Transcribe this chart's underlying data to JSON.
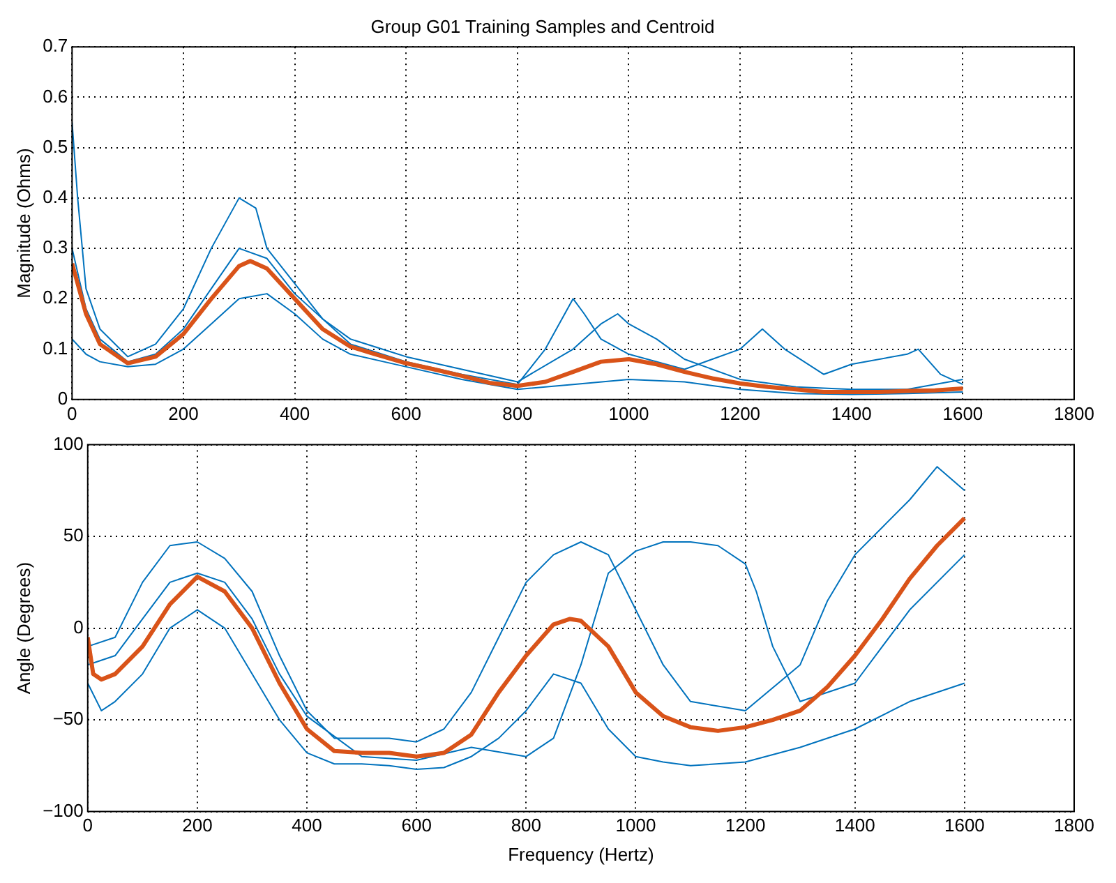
{
  "chart_data": [
    {
      "type": "line",
      "title": "Group G01 Training Samples and Centroid",
      "ylabel": "Magnitude (Ohms)",
      "xlim": [
        0,
        1800
      ],
      "xticks": [
        0,
        200,
        400,
        600,
        800,
        1000,
        1200,
        1400,
        1600,
        1800
      ],
      "ylim": [
        0,
        0.7
      ],
      "yticks": [
        0,
        0.1,
        0.2,
        0.3,
        0.4,
        0.5,
        0.6,
        0.7
      ],
      "grid": true,
      "legend": false,
      "marker": "none",
      "line_style": "solid",
      "series": [
        {
          "color": "#0072bd",
          "x": [
            0,
            10,
            25,
            50,
            100,
            150,
            200,
            250,
            300,
            330,
            350,
            400,
            450,
            500,
            600,
            700,
            800,
            900,
            950,
            980,
            1000,
            1050,
            1100,
            1200,
            1300,
            1400,
            1500,
            1600
          ],
          "values": [
            0.55,
            0.4,
            0.22,
            0.14,
            0.085,
            0.11,
            0.18,
            0.3,
            0.4,
            0.38,
            0.3,
            0.23,
            0.16,
            0.12,
            0.085,
            0.06,
            0.035,
            0.1,
            0.15,
            0.17,
            0.15,
            0.12,
            0.08,
            0.04,
            0.025,
            0.02,
            0.02,
            0.04
          ]
        },
        {
          "color": "#0072bd",
          "x": [
            0,
            25,
            50,
            100,
            150,
            200,
            250,
            300,
            350,
            400,
            450,
            500,
            600,
            700,
            800,
            900,
            1000,
            1100,
            1200,
            1300,
            1400,
            1500,
            1600
          ],
          "values": [
            0.12,
            0.09,
            0.075,
            0.065,
            0.07,
            0.1,
            0.15,
            0.2,
            0.21,
            0.17,
            0.12,
            0.09,
            0.065,
            0.04,
            0.02,
            0.03,
            0.04,
            0.035,
            0.02,
            0.012,
            0.01,
            0.012,
            0.015
          ]
        },
        {
          "color": "#0072bd",
          "x": [
            0,
            25,
            50,
            100,
            150,
            200,
            250,
            300,
            350,
            400,
            500,
            600,
            700,
            800,
            850,
            900,
            920,
            950,
            1000,
            1100,
            1200,
            1240,
            1280,
            1350,
            1400,
            1500,
            1520,
            1560,
            1600
          ],
          "values": [
            0.3,
            0.18,
            0.12,
            0.075,
            0.09,
            0.14,
            0.22,
            0.3,
            0.28,
            0.21,
            0.11,
            0.075,
            0.05,
            0.03,
            0.1,
            0.2,
            0.17,
            0.12,
            0.09,
            0.06,
            0.1,
            0.14,
            0.1,
            0.05,
            0.07,
            0.09,
            0.1,
            0.05,
            0.03
          ]
        },
        {
          "color": "#d95319",
          "x": [
            0,
            25,
            50,
            100,
            150,
            200,
            250,
            300,
            320,
            350,
            400,
            450,
            500,
            550,
            600,
            650,
            700,
            750,
            800,
            850,
            900,
            950,
            1000,
            1050,
            1100,
            1150,
            1200,
            1250,
            1300,
            1350,
            1400,
            1450,
            1500,
            1550,
            1600
          ],
          "values": [
            0.27,
            0.17,
            0.11,
            0.072,
            0.085,
            0.13,
            0.2,
            0.265,
            0.275,
            0.26,
            0.2,
            0.14,
            0.105,
            0.088,
            0.072,
            0.06,
            0.047,
            0.033,
            0.027,
            0.035,
            0.055,
            0.075,
            0.08,
            0.07,
            0.055,
            0.042,
            0.032,
            0.025,
            0.02,
            0.015,
            0.015,
            0.015,
            0.017,
            0.018,
            0.022
          ]
        }
      ]
    },
    {
      "type": "line",
      "xlabel": "Frequency (Hertz)",
      "ylabel": "Angle (Degrees)",
      "xlim": [
        0,
        1800
      ],
      "xticks": [
        0,
        200,
        400,
        600,
        800,
        1000,
        1200,
        1400,
        1600,
        1800
      ],
      "ylim": [
        -100,
        100
      ],
      "yticks": [
        {
          "value": -100,
          "label": "−100"
        },
        {
          "value": -50,
          "label": "−50"
        },
        0,
        50,
        100
      ],
      "grid": true,
      "legend": false,
      "marker": "none",
      "line_style": "solid",
      "series": [
        {
          "color": "#0072bd",
          "x": [
            0,
            50,
            100,
            150,
            200,
            250,
            300,
            350,
            400,
            450,
            500,
            550,
            600,
            650,
            700,
            750,
            800,
            850,
            900,
            950,
            1000,
            1050,
            1100,
            1200,
            1300,
            1350,
            1400,
            1450,
            1500,
            1550,
            1600
          ],
          "values": [
            -10,
            -5,
            25,
            45,
            47,
            38,
            20,
            -15,
            -45,
            -60,
            -60,
            -60,
            -62,
            -55,
            -35,
            -5,
            25,
            40,
            47,
            40,
            10,
            -20,
            -40,
            -45,
            -20,
            15,
            40,
            55,
            70,
            88,
            75
          ]
        },
        {
          "color": "#0072bd",
          "x": [
            0,
            25,
            50,
            100,
            150,
            200,
            250,
            300,
            350,
            400,
            450,
            500,
            550,
            600,
            650,
            700,
            750,
            800,
            850,
            900,
            950,
            1000,
            1050,
            1100,
            1200,
            1300,
            1400,
            1500,
            1600
          ],
          "values": [
            -30,
            -45,
            -40,
            -25,
            0,
            10,
            0,
            -25,
            -50,
            -68,
            -74,
            -74,
            -75,
            -77,
            -76,
            -70,
            -60,
            -45,
            -25,
            -30,
            -55,
            -70,
            -73,
            -75,
            -73,
            -65,
            -55,
            -40,
            -30
          ]
        },
        {
          "color": "#0072bd",
          "x": [
            0,
            50,
            100,
            150,
            200,
            250,
            300,
            350,
            400,
            500,
            600,
            700,
            800,
            850,
            900,
            950,
            1000,
            1050,
            1100,
            1150,
            1200,
            1220,
            1250,
            1300,
            1400,
            1500,
            1600
          ],
          "values": [
            -20,
            -15,
            5,
            25,
            30,
            25,
            5,
            -25,
            -48,
            -70,
            -72,
            -65,
            -70,
            -60,
            -20,
            30,
            42,
            47,
            47,
            45,
            35,
            20,
            -10,
            -40,
            -30,
            10,
            40
          ]
        },
        {
          "color": "#d95319",
          "x": [
            0,
            10,
            25,
            50,
            100,
            150,
            200,
            250,
            300,
            350,
            400,
            450,
            500,
            550,
            600,
            650,
            700,
            750,
            800,
            850,
            880,
            900,
            950,
            1000,
            1050,
            1100,
            1150,
            1200,
            1250,
            1300,
            1350,
            1400,
            1450,
            1500,
            1550,
            1600
          ],
          "values": [
            -5,
            -25,
            -28,
            -25,
            -10,
            13,
            28,
            20,
            0,
            -30,
            -55,
            -67,
            -68,
            -68,
            -70,
            -68,
            -58,
            -35,
            -15,
            2,
            5,
            4,
            -10,
            -35,
            -48,
            -54,
            -56,
            -54,
            -50,
            -45,
            -32,
            -15,
            5,
            27,
            45,
            60
          ]
        }
      ]
    }
  ]
}
